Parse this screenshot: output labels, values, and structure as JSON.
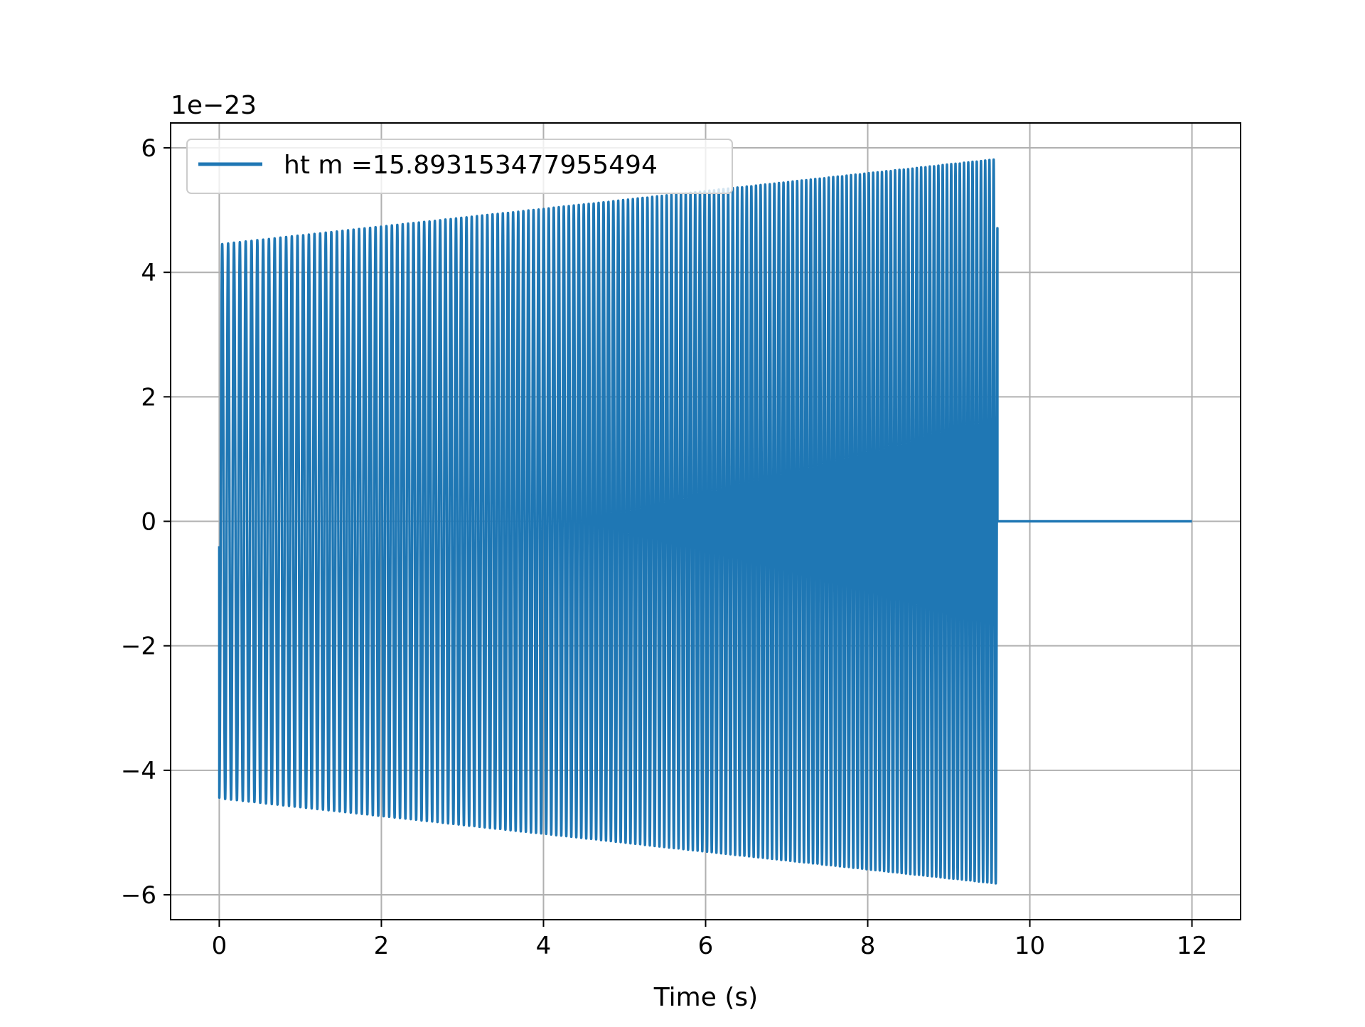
{
  "chart_data": {
    "type": "line",
    "title": "",
    "xlabel": "Time (s)",
    "ylabel": "",
    "y_offset_text": "1e−23",
    "xlim": [
      -0.6,
      12.6
    ],
    "ylim": [
      -6.4,
      6.4
    ],
    "xticks": [
      0,
      2,
      4,
      6,
      8,
      10,
      12
    ],
    "xtick_labels": [
      "0",
      "2",
      "4",
      "6",
      "8",
      "10",
      "12"
    ],
    "yticks": [
      -6,
      -4,
      -2,
      0,
      2,
      4,
      6
    ],
    "ytick_labels": [
      "−6",
      "−4",
      "−2",
      "0",
      "2",
      "4",
      "6"
    ],
    "grid": true,
    "legend": {
      "location": "upper left"
    },
    "series": [
      {
        "name": "ht m =15.893153477955494",
        "color": "#1f77b4",
        "signal": {
          "kind": "chirp",
          "t_start": 0,
          "t_merger": 9.6,
          "t_end": 12,
          "amplitude_start": 4.45,
          "amplitude_end": 5.82,
          "freq_start": 13.7,
          "freq_end": 19.3,
          "y_start": -0.4,
          "post_merger_value": 0
        }
      }
    ]
  }
}
